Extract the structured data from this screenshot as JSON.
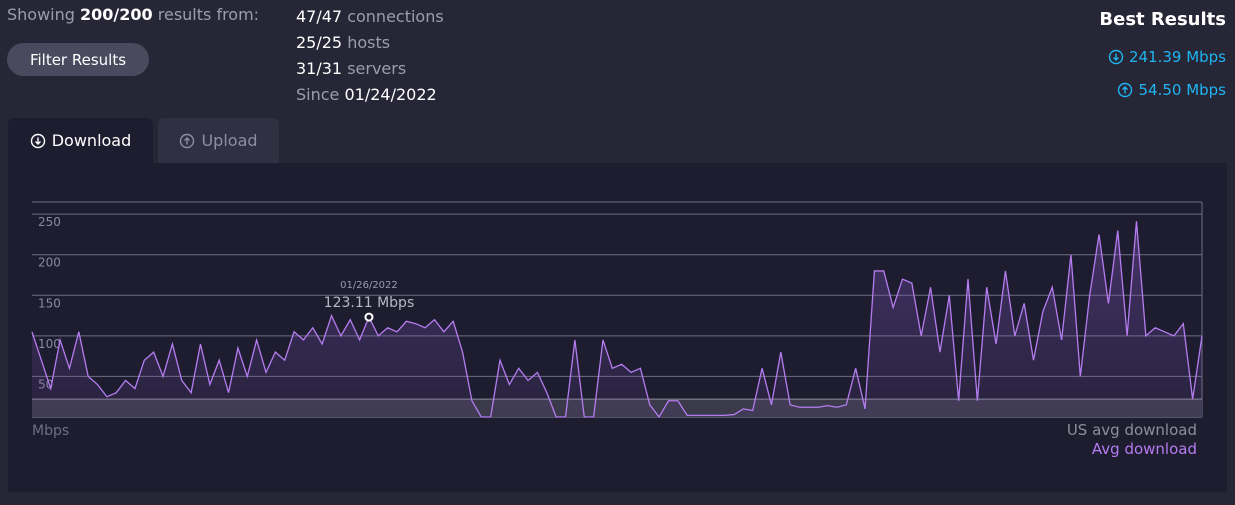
{
  "header": {
    "showing_prefix": "Showing",
    "count": "200/200",
    "showing_suffix": "results from:"
  },
  "stats": [
    {
      "value": "47/47",
      "label": "connections"
    },
    {
      "value": "25/25",
      "label": "hosts"
    },
    {
      "value": "31/31",
      "label": "servers"
    },
    {
      "label": "Since",
      "value": "01/24/2022"
    }
  ],
  "filter_button": "Filter Results",
  "best_results": {
    "title": "Best Results",
    "download": "241.39 Mbps",
    "upload": "54.50 Mbps"
  },
  "tabs": [
    "Download",
    "Upload"
  ],
  "chart_data": {
    "type": "line",
    "y_label": "Mbps",
    "ylim": [
      0,
      265
    ],
    "yticks": [
      50,
      100,
      150,
      200,
      250
    ],
    "grid": true,
    "reference_line": {
      "name": "US avg download",
      "value": 22,
      "color": "#8d8d9c"
    },
    "series": [
      {
        "name": "Avg download",
        "color": "#b57cf0",
        "values": [
          105,
          70,
          35,
          95,
          60,
          105,
          50,
          40,
          25,
          30,
          45,
          35,
          70,
          80,
          50,
          90,
          45,
          30,
          90,
          40,
          70,
          30,
          85,
          50,
          95,
          55,
          80,
          70,
          105,
          95,
          110,
          90,
          125,
          100,
          120,
          95,
          123.11,
          100,
          110,
          105,
          118,
          115,
          110,
          120,
          105,
          118,
          80,
          20,
          0,
          0,
          70,
          40,
          60,
          45,
          55,
          30,
          0,
          0,
          95,
          0,
          0,
          95,
          60,
          65,
          55,
          60,
          15,
          0,
          20,
          20,
          2,
          2,
          2,
          2,
          2,
          3,
          10,
          8,
          60,
          15,
          80,
          15,
          12,
          12,
          12,
          14,
          12,
          15,
          60,
          10,
          180,
          180,
          135,
          170,
          165,
          100,
          160,
          80,
          150,
          20,
          170,
          20,
          160,
          90,
          180,
          100,
          140,
          70,
          130,
          160,
          95,
          200,
          50,
          150,
          225,
          140,
          230,
          100,
          241.39,
          100,
          110,
          105,
          100,
          115,
          22,
          100
        ]
      }
    ],
    "annotation": {
      "date": "01/26/2022",
      "label": "123.11 Mbps",
      "value": 123.11
    }
  }
}
